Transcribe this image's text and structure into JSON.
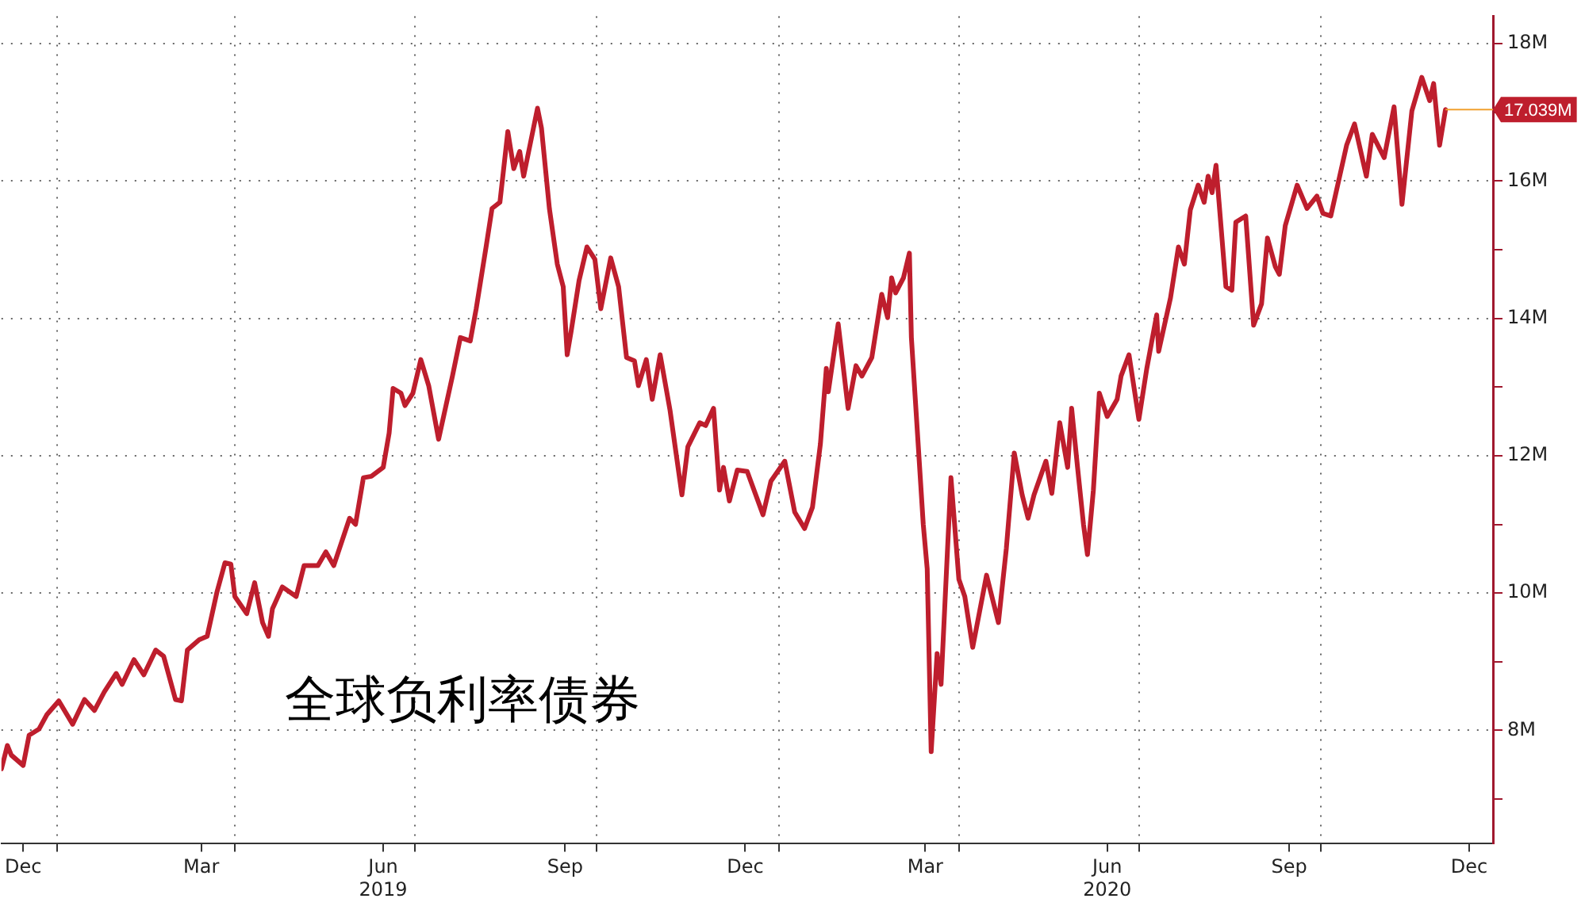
{
  "chart_data": {
    "type": "line",
    "series": [
      {
        "color": "#be1e2d",
        "x": [
          "2018-12-04",
          "2018-12-07",
          "2018-12-09",
          "2018-12-15",
          "2018-12-18",
          "2018-12-23",
          "2018-12-27",
          "2019-01-02",
          "2019-01-09",
          "2019-01-15",
          "2019-01-20",
          "2019-01-25",
          "2019-01-31",
          "2019-02-03",
          "2019-02-09",
          "2019-02-14",
          "2019-02-20",
          "2019-02-24",
          "2019-03-02",
          "2019-03-05",
          "2019-03-08",
          "2019-03-14",
          "2019-03-18",
          "2019-03-23",
          "2019-03-27",
          "2019-03-30",
          "2019-04-01",
          "2019-04-07",
          "2019-04-11",
          "2019-04-15",
          "2019-04-18",
          "2019-04-20",
          "2019-04-25",
          "2019-05-02",
          "2019-05-06",
          "2019-05-13",
          "2019-05-17",
          "2019-05-21",
          "2019-05-29",
          "2019-06-01",
          "2019-06-05",
          "2019-06-09",
          "2019-06-15",
          "2019-06-18",
          "2019-06-20",
          "2019-06-24",
          "2019-06-26",
          "2019-06-30",
          "2019-07-04",
          "2019-07-08",
          "2019-07-13",
          "2019-07-20",
          "2019-07-24",
          "2019-07-29",
          "2019-08-01",
          "2019-08-06",
          "2019-08-09",
          "2019-08-13",
          "2019-08-17",
          "2019-08-20",
          "2019-08-23",
          "2019-08-25",
          "2019-09-01",
          "2019-09-03",
          "2019-09-07",
          "2019-09-11",
          "2019-09-14",
          "2019-09-16",
          "2019-09-18",
          "2019-09-22",
          "2019-09-26",
          "2019-09-30",
          "2019-10-03",
          "2019-10-08",
          "2019-10-12",
          "2019-10-16",
          "2019-10-20",
          "2019-10-22",
          "2019-10-26",
          "2019-10-29",
          "2019-11-02",
          "2019-11-07",
          "2019-11-13",
          "2019-11-16",
          "2019-11-22",
          "2019-11-25",
          "2019-11-29",
          "2019-12-02",
          "2019-12-04",
          "2019-12-07",
          "2019-12-11",
          "2019-12-16",
          "2019-12-24",
          "2019-12-28",
          "2020-01-04",
          "2020-01-09",
          "2020-01-14",
          "2020-01-18",
          "2020-01-22",
          "2020-01-25",
          "2020-01-26",
          "2020-01-31",
          "2020-02-05",
          "2020-02-09",
          "2020-02-12",
          "2020-02-17",
          "2020-02-22",
          "2020-02-25",
          "2020-02-27",
          "2020-02-29",
          "2020-03-04",
          "2020-03-07",
          "2020-03-08",
          "2020-03-14",
          "2020-03-16",
          "2020-03-18",
          "2020-03-21",
          "2020-03-23",
          "2020-03-28",
          "2020-04-01",
          "2020-04-04",
          "2020-04-08",
          "2020-04-15",
          "2020-04-21",
          "2020-04-25",
          "2020-04-29",
          "2020-05-03",
          "2020-05-06",
          "2020-05-09",
          "2020-05-15",
          "2020-05-18",
          "2020-05-22",
          "2020-05-26",
          "2020-05-28",
          "2020-05-31",
          "2020-06-03",
          "2020-06-05",
          "2020-06-08",
          "2020-06-11",
          "2020-06-15",
          "2020-06-20",
          "2020-06-22",
          "2020-06-26",
          "2020-07-01",
          "2020-07-05",
          "2020-07-10",
          "2020-07-11",
          "2020-07-17",
          "2020-07-21",
          "2020-07-24",
          "2020-07-27",
          "2020-07-31",
          "2020-08-03",
          "2020-08-05",
          "2020-08-07",
          "2020-08-09",
          "2020-08-14",
          "2020-08-17",
          "2020-08-19",
          "2020-08-24",
          "2020-08-28",
          "2020-09-01",
          "2020-09-04",
          "2020-09-08",
          "2020-09-10",
          "2020-09-13",
          "2020-09-19",
          "2020-09-24",
          "2020-09-29",
          "2020-10-02",
          "2020-10-06",
          "2020-10-14",
          "2020-10-18",
          "2020-10-24",
          "2020-10-27",
          "2020-11-02",
          "2020-11-07",
          "2020-11-11",
          "2020-11-16",
          "2020-11-21",
          "2020-11-25",
          "2020-11-27",
          "2020-11-30",
          "2020-12-03"
        ],
        "values": [
          7.44,
          7.78,
          7.64,
          7.49,
          7.93,
          8.02,
          8.23,
          8.43,
          8.09,
          8.45,
          8.29,
          8.56,
          8.83,
          8.67,
          9.03,
          8.81,
          9.17,
          9.08,
          8.45,
          8.43,
          9.17,
          9.32,
          9.37,
          10.02,
          10.44,
          10.42,
          9.95,
          9.7,
          10.15,
          9.57,
          9.37,
          9.77,
          10.09,
          9.95,
          10.4,
          10.4,
          10.6,
          10.4,
          11.09,
          11.0,
          11.68,
          11.7,
          11.83,
          12.33,
          12.98,
          12.91,
          12.73,
          12.91,
          13.4,
          13.02,
          12.24,
          13.16,
          13.72,
          13.67,
          14.14,
          15.04,
          15.6,
          15.69,
          16.72,
          16.18,
          16.43,
          16.07,
          17.06,
          16.77,
          15.6,
          14.79,
          14.46,
          13.47,
          13.81,
          14.55,
          15.04,
          14.86,
          14.14,
          14.88,
          14.46,
          13.43,
          13.38,
          13.02,
          13.4,
          12.82,
          13.47,
          12.66,
          11.43,
          12.13,
          12.48,
          12.44,
          12.69,
          11.5,
          11.83,
          11.34,
          11.79,
          11.77,
          11.14,
          11.63,
          11.92,
          11.18,
          10.94,
          11.25,
          12.17,
          13.27,
          12.93,
          13.92,
          12.69,
          13.31,
          13.16,
          13.43,
          14.35,
          14.01,
          14.59,
          14.37,
          14.59,
          14.95,
          13.72,
          11.0,
          10.35,
          7.69,
          9.12,
          8.67,
          11.68,
          10.2,
          9.95,
          9.21,
          10.26,
          9.57,
          10.65,
          12.04,
          11.43,
          11.09,
          11.43,
          11.92,
          11.45,
          12.48,
          11.83,
          12.69,
          11.83,
          11.0,
          10.56,
          11.5,
          12.91,
          12.57,
          12.82,
          13.16,
          13.47,
          12.53,
          13.27,
          14.05,
          13.52,
          14.3,
          15.04,
          14.79,
          15.58,
          15.94,
          15.69,
          16.07,
          15.83,
          16.23,
          14.46,
          14.41,
          15.4,
          15.49,
          13.9,
          14.21,
          15.17,
          14.75,
          14.64,
          15.35,
          15.94,
          15.6,
          15.78,
          15.53,
          15.49,
          16.52,
          16.83,
          16.07,
          16.68,
          16.34,
          17.08,
          15.66,
          17.02,
          17.51,
          17.17,
          17.42,
          16.52,
          17.039
        ]
      }
    ],
    "xlim": [
      "2018-12-04",
      "2020-12-27"
    ],
    "xticks": [
      {
        "value": "2018-12-15",
        "label": "Dec"
      },
      {
        "value": "2019-01-01",
        "label": null
      },
      {
        "value": "2019-03-15",
        "label": "Mar"
      },
      {
        "value": "2019-04-01",
        "label": null
      },
      {
        "value": "2019-06-15",
        "label": "Jun\n2019"
      },
      {
        "value": "2019-07-01",
        "label": null
      },
      {
        "value": "2019-09-15",
        "label": "Sep"
      },
      {
        "value": "2019-10-01",
        "label": null
      },
      {
        "value": "2019-12-15",
        "label": "Dec"
      },
      {
        "value": "2020-01-01",
        "label": null
      },
      {
        "value": "2020-03-15",
        "label": "Mar"
      },
      {
        "value": "2020-04-01",
        "label": null
      },
      {
        "value": "2020-06-15",
        "label": "Jun\n2020"
      },
      {
        "value": "2020-07-01",
        "label": null
      },
      {
        "value": "2020-09-15",
        "label": "Sep"
      },
      {
        "value": "2020-10-01",
        "label": null
      },
      {
        "value": "2020-12-15",
        "label": "Dec"
      }
    ],
    "ylim": [
      6.35,
      18.4
    ],
    "yticks": [
      {
        "value": 7,
        "label": null
      },
      {
        "value": 8,
        "label": "8M"
      },
      {
        "value": 9,
        "label": null
      },
      {
        "value": 10,
        "label": "10M"
      },
      {
        "value": 11,
        "label": null
      },
      {
        "value": 12,
        "label": "12M"
      },
      {
        "value": 13,
        "label": null
      },
      {
        "value": 14,
        "label": "14M"
      },
      {
        "value": 15,
        "label": null
      },
      {
        "value": 16,
        "label": "16M"
      },
      {
        "value": 17,
        "label": null
      },
      {
        "value": 18,
        "label": "18M"
      }
    ],
    "grid": true,
    "legend": false,
    "marker": "none",
    "line_style": "solid",
    "annotations": [
      "全球负利率债券",
      {
        "text": "17.039M",
        "x": "2020-12-03",
        "y": 17.039
      }
    ]
  }
}
